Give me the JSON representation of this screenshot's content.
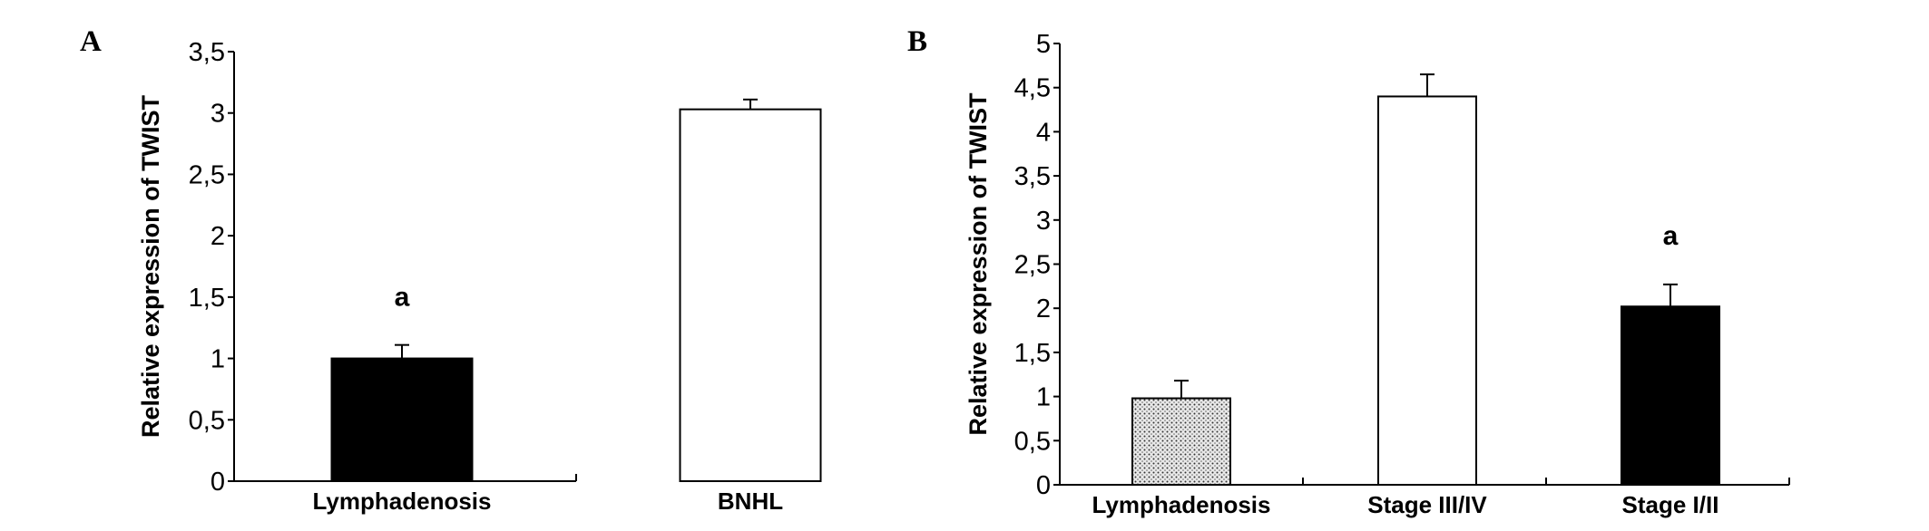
{
  "chart_data": [
    {
      "panel": "A",
      "type": "bar",
      "categories": [
        "Lymphadenosis",
        "BNHL"
      ],
      "values": [
        1.0,
        3.03
      ],
      "errors": [
        0.11,
        0.08
      ],
      "fills": [
        "black",
        "white"
      ],
      "annotations": [
        {
          "category": "Lymphadenosis",
          "text": "a"
        }
      ],
      "ylabel": "Relative expression of TWIST",
      "xlabel": "",
      "ylim": [
        0,
        3.5
      ],
      "yticks": [
        0,
        0.5,
        1,
        1.5,
        2,
        2.5,
        3,
        3.5
      ],
      "ytick_labels": [
        "0",
        "0,5",
        "1",
        "1,5",
        "2",
        "2,5",
        "3",
        "3,5"
      ],
      "grid": false
    },
    {
      "panel": "B",
      "type": "bar",
      "categories": [
        "Lymphadenosis",
        "Stage III/IV",
        "Stage I/II"
      ],
      "values": [
        0.98,
        4.4,
        2.02
      ],
      "errors": [
        0.2,
        0.25,
        0.25
      ],
      "fills": [
        "dotted",
        "white",
        "black"
      ],
      "annotations": [
        {
          "category": "Stage I/II",
          "text": "a"
        }
      ],
      "ylabel": "Relative expression of TWIST",
      "xlabel": "",
      "ylim": [
        0,
        5
      ],
      "yticks": [
        0,
        0.5,
        1,
        1.5,
        2,
        2.5,
        3,
        3.5,
        4,
        4.5,
        5
      ],
      "ytick_labels": [
        "0",
        "0,5",
        "1",
        "1,5",
        "2",
        "2,5",
        "3",
        "3,5",
        "4",
        "4,5",
        "5"
      ],
      "grid": false
    }
  ]
}
